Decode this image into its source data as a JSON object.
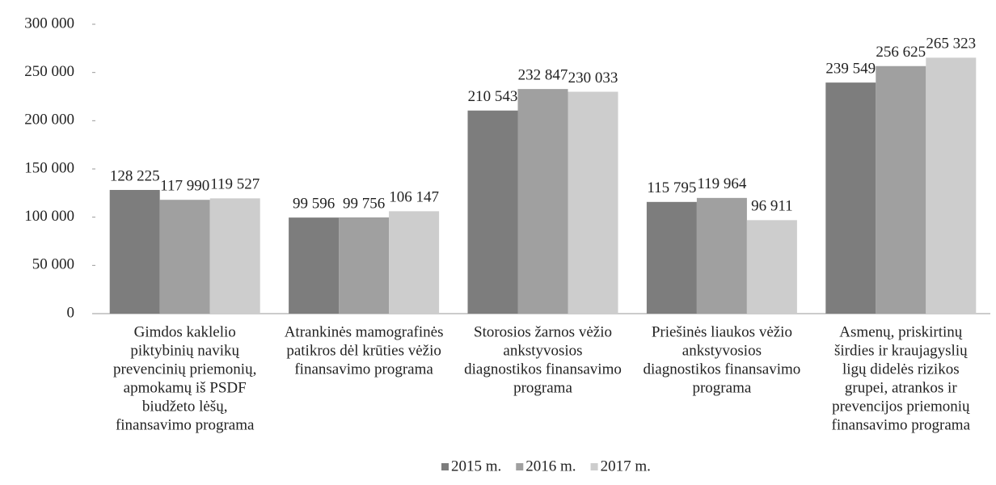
{
  "chart_data": {
    "type": "bar",
    "categories": [
      [
        "Gimdos kaklelio",
        "piktybinių navikų",
        "prevencinių priemonių,",
        "apmokamų iš PSDF",
        "biudžeto lėšų,",
        "finansavimo programa"
      ],
      [
        "Atrankinės mamografinės",
        "patikros dėl krūties vėžio",
        "finansavimo programa"
      ],
      [
        "Storosios žarnos vėžio",
        "ankstyvosios",
        "diagnostikos finansavimo",
        "programa"
      ],
      [
        "Priešinės liaukos vėžio",
        "ankstyvosios",
        "diagnostikos finansavimo",
        "programa"
      ],
      [
        "Asmenų, priskirtinų",
        "širdies ir kraujagyslių",
        "ligų didelės rizikos",
        "grupei, atrankos ir",
        "prevencijos priemonių",
        "finansavimo programa"
      ]
    ],
    "series": [
      {
        "name": "2015 m.",
        "color": "#7d7d7d",
        "values": [
          128225,
          99596,
          210543,
          115795,
          239549
        ],
        "value_labels": [
          "128 225",
          "99 596",
          "210 543",
          "115 795",
          "239 549"
        ]
      },
      {
        "name": "2016 m.",
        "color": "#a0a0a0",
        "values": [
          117990,
          99756,
          232847,
          119964,
          256625
        ],
        "value_labels": [
          "117 990",
          "99 756",
          "232 847",
          "119 964",
          "256 625"
        ]
      },
      {
        "name": "2017 m.",
        "color": "#cdcdcd",
        "values": [
          119527,
          106147,
          230033,
          96911,
          265323
        ],
        "value_labels": [
          "119 527",
          "106 147",
          "230 033",
          "96 911",
          "265 323"
        ]
      }
    ],
    "ylim": [
      0,
      300000
    ],
    "yticks": [
      0,
      {
        "value": 50000,
        "label": "50 000"
      },
      {
        "value": 100000,
        "label": "100 000"
      },
      {
        "value": 150000,
        "label": "150 000"
      },
      {
        "value": 200000,
        "label": "200 000"
      },
      {
        "value": 250000,
        "label": "250 000"
      },
      {
        "value": 300000,
        "label": "300 000"
      }
    ],
    "grid": false,
    "legend": "bottom"
  }
}
